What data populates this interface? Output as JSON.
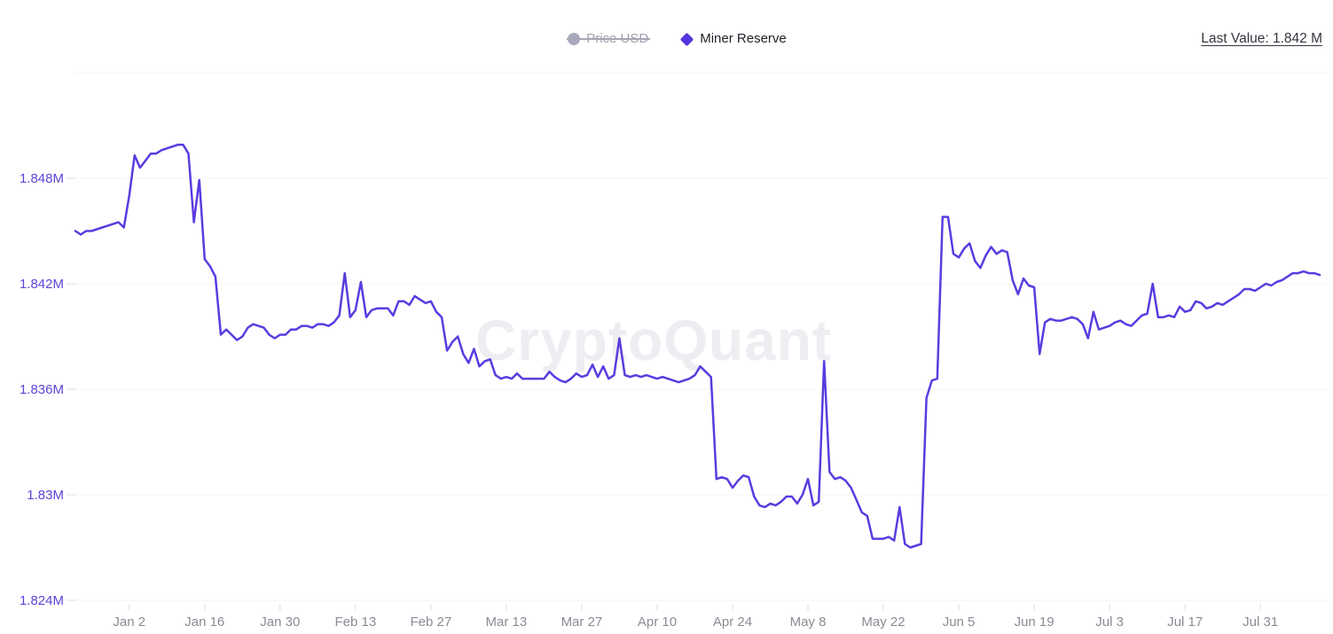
{
  "legend": {
    "items": [
      {
        "id": "price-usd",
        "label": "Price USD",
        "marker": "circle-icon",
        "color": "#a9a9bd",
        "disabled": true
      },
      {
        "id": "miner-reserve",
        "label": "Miner Reserve",
        "marker": "diamond-icon",
        "color": "#5634e0",
        "disabled": false
      }
    ]
  },
  "header": {
    "last_value": "Last Value: 1.842 M"
  },
  "watermark": "CryptoQuant",
  "chart_data": {
    "type": "line",
    "series_name": "Miner Reserve",
    "unit": "M",
    "line_color": "#5b3be0",
    "grid": true,
    "legend_position": "top-center",
    "ylim": [
      1.8225,
      1.854
    ],
    "y_axis": {
      "gridlines": [
        1.854,
        1.848,
        1.842,
        1.836,
        1.83,
        1.824
      ],
      "ticks": [
        {
          "value": 1.848,
          "label": "1.848M"
        },
        {
          "value": 1.842,
          "label": "1.842M"
        },
        {
          "value": 1.836,
          "label": "1.836M"
        },
        {
          "value": 1.83,
          "label": "1.83M"
        },
        {
          "value": 1.824,
          "label": "1.824M"
        }
      ]
    },
    "x_axis": {
      "ticks": [
        {
          "index": 10,
          "label": "Jan 2"
        },
        {
          "index": 24,
          "label": "Jan 16"
        },
        {
          "index": 38,
          "label": "Jan 30"
        },
        {
          "index": 52,
          "label": "Feb 13"
        },
        {
          "index": 66,
          "label": "Feb 27"
        },
        {
          "index": 80,
          "label": "Mar 13"
        },
        {
          "index": 94,
          "label": "Mar 27"
        },
        {
          "index": 108,
          "label": "Apr 10"
        },
        {
          "index": 122,
          "label": "Apr 24"
        },
        {
          "index": 136,
          "label": "May 8"
        },
        {
          "index": 150,
          "label": "May 22"
        },
        {
          "index": 164,
          "label": "Jun 5"
        },
        {
          "index": 178,
          "label": "Jun 19"
        },
        {
          "index": 192,
          "label": "Jul 3"
        },
        {
          "index": 206,
          "label": "Jul 17"
        },
        {
          "index": 220,
          "label": "Jul 31"
        }
      ]
    },
    "values": [
      1.845,
      1.8448,
      1.845,
      1.845,
      1.8451,
      1.8452,
      1.8453,
      1.8454,
      1.8455,
      1.8452,
      1.847,
      1.8493,
      1.8486,
      1.849,
      1.8494,
      1.8494,
      1.8496,
      1.8497,
      1.8498,
      1.8499,
      1.8499,
      1.8494,
      1.8455,
      1.8479,
      1.8434,
      1.843,
      1.8424,
      1.8391,
      1.8394,
      1.8391,
      1.8388,
      1.839,
      1.8395,
      1.8397,
      1.8396,
      1.8395,
      1.8391,
      1.8389,
      1.8391,
      1.8391,
      1.8394,
      1.8394,
      1.8396,
      1.8396,
      1.8395,
      1.8397,
      1.8397,
      1.8396,
      1.8398,
      1.8402,
      1.8426,
      1.8401,
      1.8405,
      1.8421,
      1.8401,
      1.8405,
      1.8406,
      1.8406,
      1.8406,
      1.8402,
      1.841,
      1.841,
      1.8408,
      1.8413,
      1.8411,
      1.8409,
      1.841,
      1.8404,
      1.8401,
      1.8382,
      1.8387,
      1.839,
      1.838,
      1.8375,
      1.8383,
      1.8373,
      1.8376,
      1.8377,
      1.8368,
      1.8366,
      1.8367,
      1.8366,
      1.8369,
      1.8366,
      1.8366,
      1.8366,
      1.8366,
      1.8366,
      1.837,
      1.8367,
      1.8365,
      1.8364,
      1.8366,
      1.8369,
      1.8367,
      1.8368,
      1.8374,
      1.8367,
      1.8373,
      1.8366,
      1.8368,
      1.8389,
      1.8368,
      1.8367,
      1.8368,
      1.8367,
      1.8368,
      1.8367,
      1.8366,
      1.8367,
      1.8366,
      1.8365,
      1.8364,
      1.8365,
      1.8366,
      1.8368,
      1.8373,
      1.837,
      1.8367,
      1.8309,
      1.831,
      1.8309,
      1.8304,
      1.8308,
      1.8311,
      1.831,
      1.8299,
      1.8294,
      1.8293,
      1.8295,
      1.8294,
      1.8296,
      1.8299,
      1.8299,
      1.8295,
      1.83,
      1.8309,
      1.8294,
      1.8296,
      1.8376,
      1.8313,
      1.8309,
      1.831,
      1.8308,
      1.8304,
      1.8297,
      1.829,
      1.8288,
      1.8275,
      1.8275,
      1.8275,
      1.8276,
      1.8274,
      1.8293,
      1.8272,
      1.827,
      1.8271,
      1.8272,
      1.8355,
      1.8365,
      1.8366,
      1.8458,
      1.8458,
      1.8437,
      1.8435,
      1.844,
      1.8443,
      1.8433,
      1.8429,
      1.8436,
      1.8441,
      1.8437,
      1.8439,
      1.8438,
      1.8422,
      1.8414,
      1.8423,
      1.8419,
      1.8418,
      1.838,
      1.8398,
      1.84,
      1.8399,
      1.8399,
      1.84,
      1.8401,
      1.84,
      1.8397,
      1.8389,
      1.8404,
      1.8394,
      1.8395,
      1.8396,
      1.8398,
      1.8399,
      1.8397,
      1.8396,
      1.8399,
      1.8402,
      1.8403,
      1.842,
      1.8401,
      1.8401,
      1.8402,
      1.8401,
      1.8407,
      1.8404,
      1.8405,
      1.841,
      1.8409,
      1.8406,
      1.8407,
      1.8409,
      1.8408,
      1.841,
      1.8412,
      1.8414,
      1.8417,
      1.8417,
      1.8416,
      1.8418,
      1.842,
      1.8419,
      1.8421,
      1.8422,
      1.8424,
      1.8426,
      1.8426,
      1.8427,
      1.8426,
      1.8426,
      1.8425
    ]
  }
}
